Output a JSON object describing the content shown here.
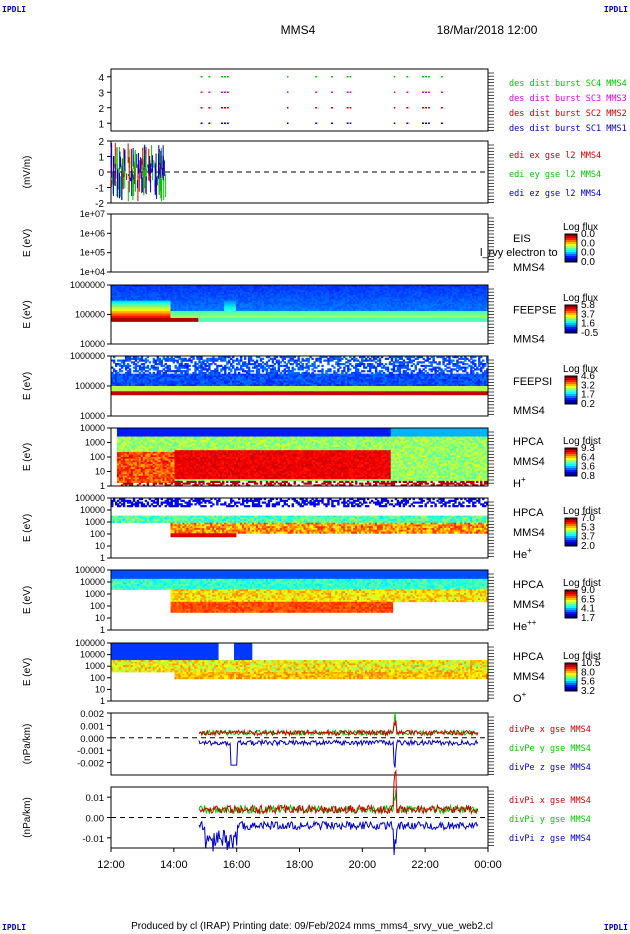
{
  "header": {
    "spacecraft": "MMS4",
    "date": "18/Mar/2018 12:00",
    "corner_label": "IPDLI"
  },
  "footer": {
    "text": "Produced by cl (IRAP)   Printing date: 09/Feb/2024   mms_mms4_srvy_vue_web2.cl"
  },
  "colors": {
    "red": "#cc0000",
    "green": "#00c800",
    "blue": "#0000cc",
    "magenta": "#dd00dd"
  },
  "chart_data": [
    {
      "type": "scatter",
      "name": "burst-availability",
      "x_range": [
        "12:00",
        "00:00"
      ],
      "ylim": [
        0.5,
        4.5
      ],
      "y_ticks": [
        "1",
        "2",
        "3",
        "4"
      ],
      "legend": [
        {
          "text": "des dist burst SC1 MMS1",
          "color": "#0000cc"
        },
        {
          "text": "des dist burst SC2 MMS2",
          "color": "#cc0000"
        },
        {
          "text": "des dist burst SC3 MMS3",
          "color": "#dd00dd"
        },
        {
          "text": "des dist burst SC4 MMS4",
          "color": "#00c800"
        }
      ],
      "burst_intervals_hours": [
        [
          14.85,
          14.95
        ],
        [
          15.1,
          15.2
        ],
        [
          15.5,
          15.75
        ],
        [
          17.6,
          17.65
        ],
        [
          18.5,
          18.6
        ],
        [
          19.0,
          19.1
        ],
        [
          19.5,
          19.65
        ],
        [
          21.0,
          21.05
        ],
        [
          21.4,
          21.5
        ],
        [
          21.9,
          22.15
        ],
        [
          22.5,
          22.6
        ]
      ]
    },
    {
      "type": "line",
      "name": "edi-efield",
      "ylabel": "(mV/m)",
      "ylim": [
        -2,
        2
      ],
      "y_ticks": [
        "-2",
        "-1",
        "0",
        "1",
        "2"
      ],
      "data_hours": [
        12.0,
        13.75
      ],
      "legend": [
        {
          "text": "edi ex gse l2 MMS4",
          "color": "#cc0000"
        },
        {
          "text": "edi ey gse l2 MMS4",
          "color": "#00c800"
        },
        {
          "text": "edi ez gse l2 MMS4",
          "color": "#0000cc"
        }
      ]
    },
    {
      "type": "heatmap",
      "name": "eis",
      "ylabel": "E (eV)",
      "y_ticks": [
        "1e+04",
        "1e+05",
        "1e+06",
        "1e+07"
      ],
      "label_lines": [
        "EIS",
        "MMS4"
      ],
      "overlap_text": "l_rvy electron to",
      "cbar": {
        "title": "Log flux",
        "ticks": [
          "0.0",
          "0.0",
          "0.0",
          "0.0"
        ]
      }
    },
    {
      "type": "heatmap",
      "name": "feepse",
      "ylabel": "E (eV)",
      "y_ticks": [
        "10000",
        "100000",
        "1000000"
      ],
      "label_lines": [
        "FEEPSE",
        "MMS4"
      ],
      "cbar": {
        "title": "Log flux",
        "ticks": [
          "5.8",
          "3.7",
          "1.6",
          "-0.5"
        ]
      }
    },
    {
      "type": "heatmap",
      "name": "feepsi",
      "ylabel": "E (eV)",
      "y_ticks": [
        "10000",
        "100000",
        "1000000"
      ],
      "label_lines": [
        "FEEPSI",
        "MMS4"
      ],
      "cbar": {
        "title": "Log flux",
        "ticks": [
          "4.6",
          "3.2",
          "1.7",
          "0.2"
        ]
      }
    },
    {
      "type": "heatmap",
      "name": "hpca-h",
      "ylabel": "E (eV)",
      "y_ticks": [
        "1",
        "10",
        "100",
        "1000",
        "10000"
      ],
      "label_lines": [
        "HPCA",
        "MMS4",
        "H"
      ],
      "species_sup": "+",
      "cbar": {
        "title": "Log fdist",
        "ticks": [
          "9.3",
          "6.4",
          "3.6",
          "0.8"
        ]
      }
    },
    {
      "type": "heatmap",
      "name": "hpca-he",
      "ylabel": "E (eV)",
      "y_ticks": [
        "1",
        "10",
        "100",
        "1000",
        "10000",
        "100000"
      ],
      "label_lines": [
        "HPCA",
        "MMS4",
        "He"
      ],
      "species_sup": "+",
      "cbar": {
        "title": "Log fdist",
        "ticks": [
          "7.0",
          "5.3",
          "3.7",
          "2.0"
        ]
      }
    },
    {
      "type": "heatmap",
      "name": "hpca-hepp",
      "ylabel": "E (eV)",
      "y_ticks": [
        "1",
        "10",
        "100",
        "1000",
        "10000",
        "100000"
      ],
      "label_lines": [
        "HPCA",
        "MMS4",
        "He"
      ],
      "species_sup": "++",
      "cbar": {
        "title": "Log fdist",
        "ticks": [
          "9.0",
          "6.5",
          "4.1",
          "1.7"
        ]
      }
    },
    {
      "type": "heatmap",
      "name": "hpca-o",
      "ylabel": "E (eV)",
      "y_ticks": [
        "1",
        "10",
        "100",
        "1000",
        "10000",
        "100000"
      ],
      "label_lines": [
        "HPCA",
        "MMS4",
        "O"
      ],
      "species_sup": "+",
      "cbar": {
        "title": "Log fdist",
        "ticks": [
          "10.5",
          "8.0",
          "5.6",
          "3.2"
        ]
      }
    },
    {
      "type": "line",
      "name": "divpe",
      "ylabel": "(nPa/km)",
      "ylim": [
        -0.003,
        0.002
      ],
      "y_ticks": [
        "-0.002",
        "-0.001",
        "0.000",
        "0.001",
        "0.002"
      ],
      "legend": [
        {
          "text": "divPe x gse MMS4",
          "color": "#cc0000"
        },
        {
          "text": "divPe y gse MMS4",
          "color": "#00c800"
        },
        {
          "text": "divPe z gse MMS4",
          "color": "#0000cc"
        }
      ]
    },
    {
      "type": "line",
      "name": "divpi",
      "ylabel": "(nPa/km)",
      "ylim": [
        -0.015,
        0.015
      ],
      "y_ticks": [
        "-0.01",
        "0.00",
        "0.01"
      ],
      "legend": [
        {
          "text": "divPi x gse MMS4",
          "color": "#cc0000"
        },
        {
          "text": "divPi y gse MMS4",
          "color": "#00c800"
        },
        {
          "text": "divPi z gse MMS4",
          "color": "#0000cc"
        }
      ]
    }
  ],
  "x_axis": {
    "tick_labels": [
      "12:00",
      "14:00",
      "16:00",
      "18:00",
      "20:00",
      "22:00",
      "00:00"
    ]
  }
}
